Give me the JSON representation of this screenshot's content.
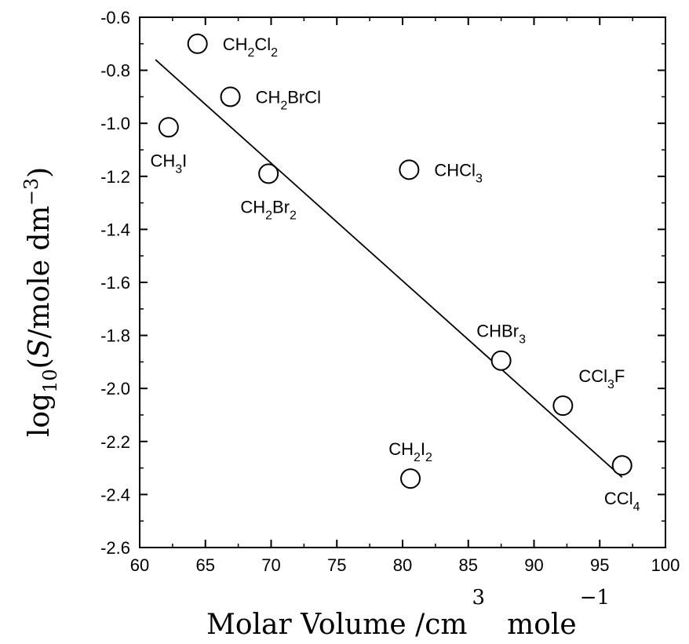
{
  "chart_data": {
    "type": "scatter",
    "title": "",
    "xlabel_main": "Molar Volume /cm",
    "xlabel_exp": "3",
    "xlabel_unit": "mole",
    "xlabel_unit_exp": "−1",
    "ylabel_pre": "log",
    "ylabel_sub": "10",
    "ylabel_open": "(",
    "ylabel_var": "S",
    "ylabel_unit": "/mole dm",
    "ylabel_exp": "−3",
    "ylabel_close": ")",
    "xlim": [
      60,
      100
    ],
    "ylim": [
      -2.6,
      -0.6
    ],
    "xticks": [
      60,
      65,
      70,
      75,
      80,
      85,
      90,
      95,
      100
    ],
    "xtick_labels": [
      "60",
      "65",
      "70",
      "75",
      "80",
      "85",
      "90",
      "95",
      "100"
    ],
    "yticks": [
      -0.6,
      -0.8,
      -1.0,
      -1.2,
      -1.4,
      -1.6,
      -1.8,
      -2.0,
      -2.2,
      -2.4,
      -2.6
    ],
    "ytick_labels": [
      "-0.6",
      "-0.8",
      "-1.0",
      "-1.2",
      "-1.4",
      "-1.6",
      "-1.8",
      "-2.0",
      "-2.2",
      "-2.4",
      "-2.6"
    ],
    "grid": false,
    "marker": "open-circle",
    "points": [
      {
        "x": 64.4,
        "y": -0.7,
        "label": [
          {
            "t": "CH"
          },
          {
            "t": "2",
            "sub": true
          },
          {
            "t": "Cl"
          },
          {
            "t": "2",
            "sub": true
          }
        ],
        "label_pos": "right"
      },
      {
        "x": 66.9,
        "y": -0.9,
        "label": [
          {
            "t": "CH"
          },
          {
            "t": "2",
            "sub": true
          },
          {
            "t": "BrCl"
          }
        ],
        "label_pos": "right"
      },
      {
        "x": 62.2,
        "y": -1.015,
        "label": [
          {
            "t": "CH"
          },
          {
            "t": "3",
            "sub": true
          },
          {
            "t": "I"
          }
        ],
        "label_pos": "below"
      },
      {
        "x": 69.8,
        "y": -1.19,
        "label": [
          {
            "t": "CH"
          },
          {
            "t": "2",
            "sub": true
          },
          {
            "t": "Br"
          },
          {
            "t": "2",
            "sub": true
          }
        ],
        "label_pos": "below"
      },
      {
        "x": 80.5,
        "y": -1.175,
        "label": [
          {
            "t": "CHCl"
          },
          {
            "t": "3",
            "sub": true
          }
        ],
        "label_pos": "right"
      },
      {
        "x": 87.5,
        "y": -1.895,
        "label": [
          {
            "t": "CHBr"
          },
          {
            "t": "3",
            "sub": true
          }
        ],
        "label_pos": "above"
      },
      {
        "x": 92.2,
        "y": -2.065,
        "label": [
          {
            "t": "CCl"
          },
          {
            "t": "3",
            "sub": true
          },
          {
            "t": "F"
          }
        ],
        "label_pos": "above-right"
      },
      {
        "x": 96.7,
        "y": -2.29,
        "label": [
          {
            "t": "CCl"
          },
          {
            "t": "4",
            "sub": true
          }
        ],
        "label_pos": "below"
      },
      {
        "x": 80.6,
        "y": -2.34,
        "label": [
          {
            "t": "CH"
          },
          {
            "t": "2",
            "sub": true
          },
          {
            "t": "I"
          },
          {
            "t": "2",
            "sub": true
          }
        ],
        "label_pos": "above"
      }
    ],
    "fit_line": {
      "x": [
        61.2,
        96.7
      ],
      "y": [
        -0.76,
        -2.335
      ]
    }
  }
}
